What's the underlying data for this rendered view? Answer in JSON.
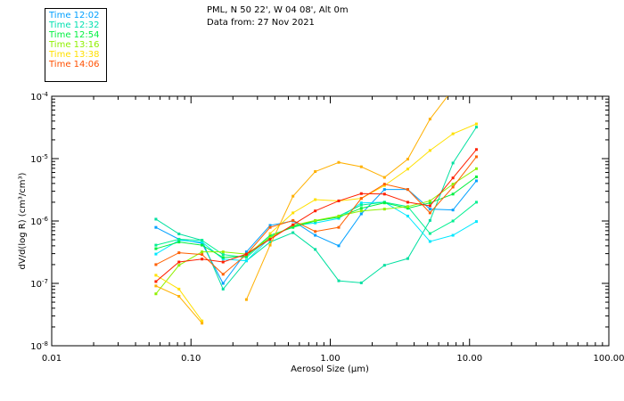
{
  "header": {
    "location": "PML, N 50 22', W 04 08', Alt 0m",
    "date": "Data from: 27 Nov 2021"
  },
  "legend": [
    {
      "label": "Time 12:02",
      "color": "#00a0ff"
    },
    {
      "label": "Time 12:32",
      "color": "#00e0b0"
    },
    {
      "label": "Time 12:54",
      "color": "#00f040"
    },
    {
      "label": "Time 13:16",
      "color": "#90f000"
    },
    {
      "label": "Time 13:38",
      "color": "#ffe000"
    },
    {
      "label": "Time 14:06",
      "color": "#ff5000"
    }
  ],
  "chart_data": {
    "type": "line",
    "xlabel": "Aerosol Size (µm)",
    "ylabel": "dV/d(log R) (cm³/cm³)",
    "xscale": "log",
    "yscale": "log",
    "xlim": [
      0.01,
      100
    ],
    "ylim": [
      1e-08,
      0.0001
    ],
    "xticks": [
      {
        "v": 0.01,
        "label": "0.01"
      },
      {
        "v": 0.1,
        "label": "0.10"
      },
      {
        "v": 1,
        "label": "1.00"
      },
      {
        "v": 10,
        "label": "10.00"
      },
      {
        "v": 100,
        "label": "100.00"
      }
    ],
    "yticks": [
      {
        "v": 0.0001,
        "base": "10",
        "exp": "-4"
      },
      {
        "v": 1e-05,
        "base": "10",
        "exp": "-5"
      },
      {
        "v": 1e-06,
        "base": "10",
        "exp": "-6"
      },
      {
        "v": 1e-07,
        "base": "10",
        "exp": "-7"
      },
      {
        "v": 1e-08,
        "base": "10",
        "exp": "-8"
      }
    ],
    "x": [
      0.056,
      0.082,
      0.12,
      0.17,
      0.25,
      0.37,
      0.54,
      0.78,
      1.15,
      1.67,
      2.45,
      3.6,
      5.2,
      7.6,
      11.2
    ],
    "series": [
      {
        "name": "blue",
        "color": "#00a0ff",
        "values": [
          7.9e-07,
          5.1e-07,
          4.4e-07,
          1e-07,
          3.2e-07,
          8.5e-07,
          1e-06,
          5.9e-07,
          4e-07,
          1.3e-06,
          3.2e-06,
          3.2e-06,
          1.55e-06,
          1.5e-06,
          4.4e-06
        ]
      },
      {
        "name": "teal",
        "color": "#00e0a0",
        "values": [
          1.07e-06,
          6.2e-07,
          4.9e-07,
          8.1e-08,
          2.3e-07,
          4.6e-07,
          6.5e-07,
          3.5e-07,
          1.1e-07,
          1.02e-07,
          1.95e-07,
          2.5e-07,
          1.02e-06,
          8.5e-06,
          3.2e-05
        ]
      },
      {
        "name": "light-cyan",
        "color": "#00e8ff",
        "values": [
          2.95e-07,
          4.9e-07,
          4.6e-07,
          2.45e-07,
          2.3e-07,
          5.4e-07,
          8.5e-07,
          9.3e-07,
          1.1e-06,
          1.95e-06,
          2e-06,
          1.2e-06,
          4.7e-07,
          5.9e-07,
          9.8e-07
        ]
      },
      {
        "name": "sea-green",
        "color": "#00f090",
        "values": [
          4.1e-07,
          5.1e-07,
          4.9e-07,
          2.9e-07,
          2.6e-07,
          5.6e-07,
          8.2e-07,
          1e-06,
          1.2e-06,
          1.8e-06,
          2e-06,
          1.7e-06,
          6.3e-07,
          1e-06,
          2e-06
        ]
      },
      {
        "name": "green",
        "color": "#00f040",
        "values": [
          3.6e-07,
          4.6e-07,
          4.1e-07,
          2.6e-07,
          2.75e-07,
          5.9e-07,
          7.9e-07,
          1e-06,
          1.15e-06,
          1.6e-06,
          1.95e-06,
          1.6e-06,
          1.95e-06,
          2.7e-06,
          5.1e-06
        ]
      },
      {
        "name": "yellow-green",
        "color": "#90f000",
        "values": [
          6.8e-08,
          1.95e-07,
          3.2e-07,
          3.2e-07,
          2.95e-07,
          5.4e-07,
          8.5e-07,
          1.02e-06,
          1.2e-06,
          1.45e-06,
          1.55e-06,
          1.7e-06,
          2.1e-06,
          3.9e-06,
          6.9e-06
        ]
      },
      {
        "name": "yellow",
        "color": "#ffe000",
        "values": [
          1.35e-07,
          8.1e-08,
          2.5e-08,
          null,
          null,
          6.3e-07,
          1.35e-06,
          2.2e-06,
          2.1e-06,
          2.3e-06,
          3.7e-06,
          6.8e-06,
          1.35e-05,
          2.5e-05,
          3.6e-05
        ]
      },
      {
        "name": "orange",
        "color": "#ffb000",
        "values": [
          9.1e-08,
          6.2e-08,
          2.3e-08,
          null,
          5.5e-08,
          4.1e-07,
          2.5e-06,
          6.2e-06,
          8.7e-06,
          7.4e-06,
          5e-06,
          9.8e-06,
          4.3e-05,
          0.00013,
          null
        ]
      },
      {
        "name": "orange-red",
        "color": "#ff6000",
        "values": [
          2e-07,
          3.1e-07,
          2.9e-07,
          1.4e-07,
          2.9e-07,
          7.9e-07,
          1.02e-06,
          6.8e-07,
          7.9e-07,
          2.3e-06,
          3.9e-06,
          3.2e-06,
          1.35e-06,
          3.5e-06,
          1.07e-05
        ]
      },
      {
        "name": "red",
        "color": "#ff2000",
        "values": [
          1.07e-07,
          2.2e-07,
          2.45e-07,
          2.2e-07,
          2.95e-07,
          5.1e-07,
          8.7e-07,
          1.45e-06,
          2.1e-06,
          2.75e-06,
          2.7e-06,
          2e-06,
          1.75e-06,
          4.9e-06,
          1.4e-05
        ]
      }
    ]
  }
}
